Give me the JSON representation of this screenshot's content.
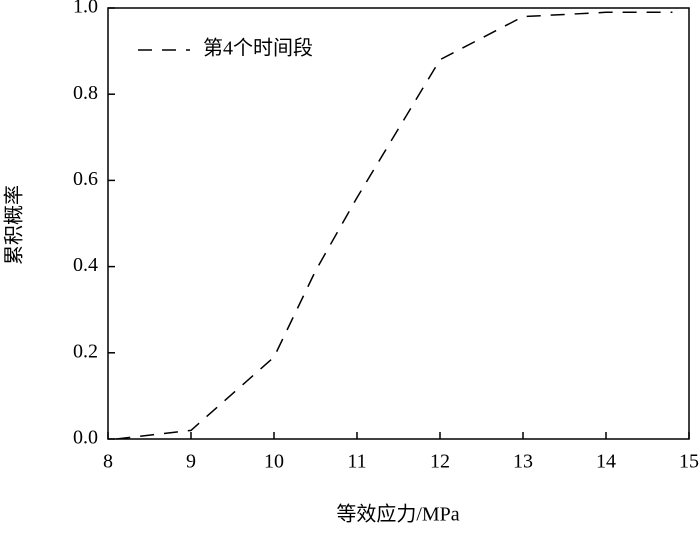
{
  "chart_data": {
    "type": "line",
    "x_label": "等效应力/MPa",
    "y_label": "累积概率",
    "x": [
      8.1,
      9,
      10,
      10.5,
      11,
      11.5,
      12,
      12.5,
      13,
      14,
      14.8
    ],
    "series": [
      {
        "name": "第4个时间段",
        "color": "#000000",
        "values": [
          0.0,
          0.02,
          0.19,
          0.39,
          0.56,
          0.72,
          0.88,
          0.93,
          0.98,
          0.99,
          0.99
        ]
      }
    ],
    "xlim": [
      8,
      15
    ],
    "ylim": [
      0,
      1
    ],
    "xticks": [
      8,
      9,
      10,
      11,
      12,
      13,
      14,
      15
    ],
    "yticks": [
      {
        "value": 0,
        "label": "0.0"
      },
      {
        "value": 0.2,
        "label": "0.2"
      },
      {
        "value": 0.4,
        "label": "0.4"
      },
      {
        "value": 0.6,
        "label": "0.6"
      },
      {
        "value": 0.8,
        "label": "0.8"
      },
      {
        "value": 1,
        "label": "1.0"
      }
    ],
    "legend": "upper-left",
    "dashed": true
  }
}
